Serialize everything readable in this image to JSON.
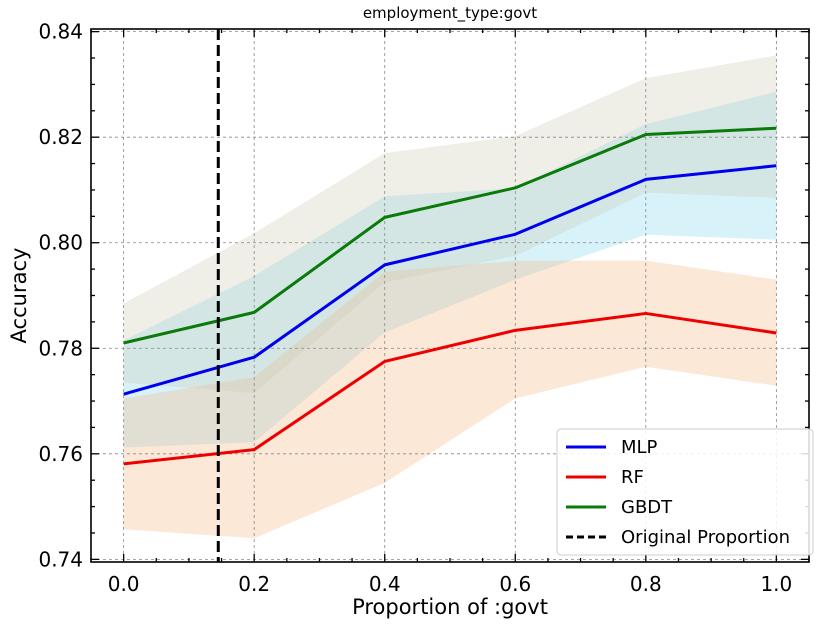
{
  "chart_data": {
    "type": "line",
    "title": "employment_type:govt",
    "xlabel": "Proportion of :govt",
    "ylabel": "Accuracy",
    "xlim": [
      -0.05,
      1.05
    ],
    "ylim": [
      0.7395,
      0.8405
    ],
    "xticks": [
      0.0,
      0.2,
      0.4,
      0.6,
      0.8,
      1.0
    ],
    "xtick_labels": [
      "0.0",
      "0.2",
      "0.4",
      "0.6",
      "0.8",
      "1.0"
    ],
    "yticks": [
      0.74,
      0.76,
      0.78,
      0.8,
      0.82,
      0.84
    ],
    "ytick_labels": [
      "0.74",
      "0.76",
      "0.78",
      "0.80",
      "0.82",
      "0.84"
    ],
    "grid": true,
    "legend_position": "bottom-right",
    "x": [
      0.0,
      0.2,
      0.4,
      0.6,
      0.8,
      1.0
    ],
    "series": [
      {
        "name": "MLP",
        "color": "#0000ee",
        "band_color": "#7fd4ee",
        "values": [
          0.7713,
          0.7783,
          0.7958,
          0.8016,
          0.812,
          0.8146
        ],
        "lower": [
          0.7612,
          0.7622,
          0.783,
          0.793,
          0.8015,
          0.8006
        ],
        "upper": [
          0.7815,
          0.7937,
          0.8088,
          0.8103,
          0.8225,
          0.8286
        ]
      },
      {
        "name": "RF",
        "color": "#ee0000",
        "band_color": "#f5b27a",
        "values": [
          0.7581,
          0.7608,
          0.7775,
          0.7834,
          0.7866,
          0.7829
        ],
        "lower": [
          0.7457,
          0.744,
          0.7545,
          0.7705,
          0.7765,
          0.7729
        ],
        "upper": [
          0.7705,
          0.7745,
          0.7945,
          0.7966,
          0.7966,
          0.793
        ]
      },
      {
        "name": "GBDT",
        "color": "#0a7a0a",
        "band_color": "#c9c9b0",
        "values": [
          0.781,
          0.7868,
          0.8048,
          0.8104,
          0.8205,
          0.8217
        ],
        "lower": [
          0.7735,
          0.7715,
          0.7925,
          0.7975,
          0.8095,
          0.8085
        ],
        "upper": [
          0.7885,
          0.8018,
          0.817,
          0.8202,
          0.8312,
          0.8355
        ]
      }
    ],
    "reference_line": {
      "name": "Original Proportion",
      "x": 0.145,
      "color": "#000000",
      "style": "dashed"
    }
  }
}
